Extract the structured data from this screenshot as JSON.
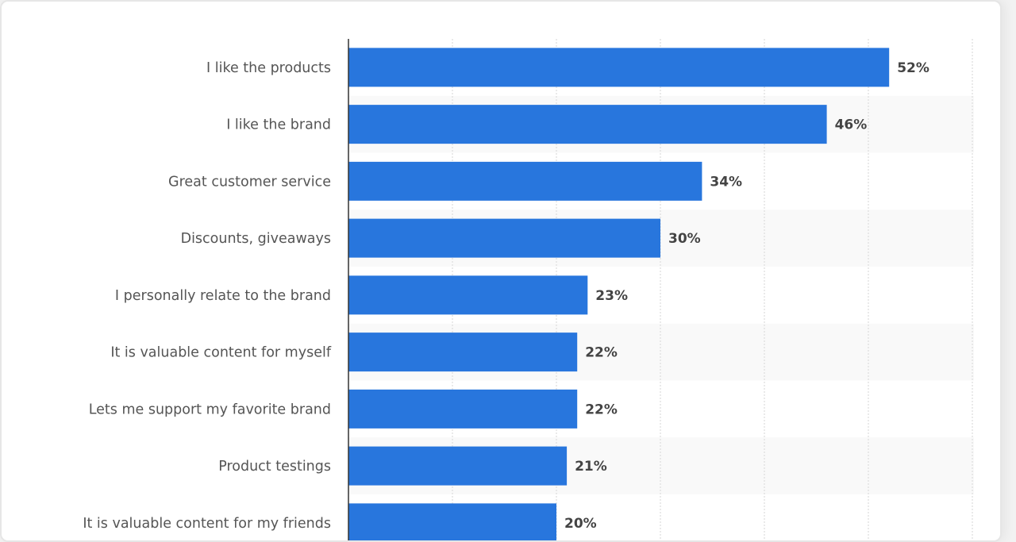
{
  "chart_data": {
    "type": "bar",
    "orientation": "horizontal",
    "categories": [
      "I like the products",
      "I like the brand",
      "Great customer service",
      "Discounts, giveaways",
      "I personally relate to the brand",
      "It is valuable content for myself",
      "Lets me support my favorite brand",
      "Product testings",
      "It is valuable content for my friends"
    ],
    "values": [
      52,
      46,
      34,
      30,
      23,
      22,
      22,
      21,
      20
    ],
    "data_labels": [
      "52%",
      "46%",
      "34%",
      "30%",
      "23%",
      "22%",
      "22%",
      "21%",
      "20%"
    ],
    "title": "",
    "xlabel": "",
    "ylabel": "",
    "xlim": [
      0,
      60
    ],
    "grid": true,
    "bar_color": "#2876dd"
  }
}
